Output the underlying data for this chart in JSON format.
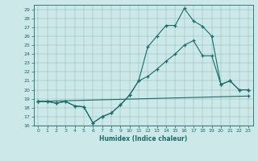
{
  "title": "",
  "xlabel": "Humidex (Indice chaleur)",
  "background_color": "#cce8e8",
  "line_color": "#1a6b6b",
  "xlim": [
    -0.5,
    23.5
  ],
  "ylim": [
    16,
    29.5
  ],
  "yticks": [
    16,
    17,
    18,
    19,
    20,
    21,
    22,
    23,
    24,
    25,
    26,
    27,
    28,
    29
  ],
  "xticks": [
    0,
    1,
    2,
    3,
    4,
    5,
    6,
    7,
    8,
    9,
    10,
    11,
    12,
    13,
    14,
    15,
    16,
    17,
    18,
    19,
    20,
    21,
    22,
    23
  ],
  "line1_x": [
    0,
    1,
    2,
    3,
    4,
    5,
    6,
    7,
    8,
    9,
    10,
    11,
    12,
    13,
    14,
    15,
    16,
    17,
    18,
    19,
    20,
    21,
    22,
    23
  ],
  "line1_y": [
    18.7,
    18.7,
    18.5,
    18.7,
    18.2,
    18.1,
    16.3,
    17.0,
    17.4,
    18.3,
    19.4,
    21.0,
    24.8,
    26.0,
    27.2,
    27.2,
    29.1,
    27.7,
    27.1,
    26.0,
    20.6,
    21.0,
    20.0,
    20.0
  ],
  "line2_x": [
    0,
    1,
    2,
    3,
    4,
    5,
    6,
    7,
    8,
    9,
    10,
    11,
    12,
    13,
    14,
    15,
    16,
    17,
    18,
    19,
    20,
    21,
    22,
    23
  ],
  "line2_y": [
    18.7,
    18.7,
    18.5,
    18.7,
    18.2,
    18.1,
    16.3,
    17.0,
    17.4,
    18.3,
    19.4,
    21.0,
    21.5,
    22.3,
    23.2,
    24.0,
    25.0,
    25.5,
    23.8,
    23.8,
    20.6,
    21.0,
    20.0,
    20.0
  ],
  "line3_x": [
    0,
    23
  ],
  "line3_y": [
    18.7,
    19.3
  ]
}
